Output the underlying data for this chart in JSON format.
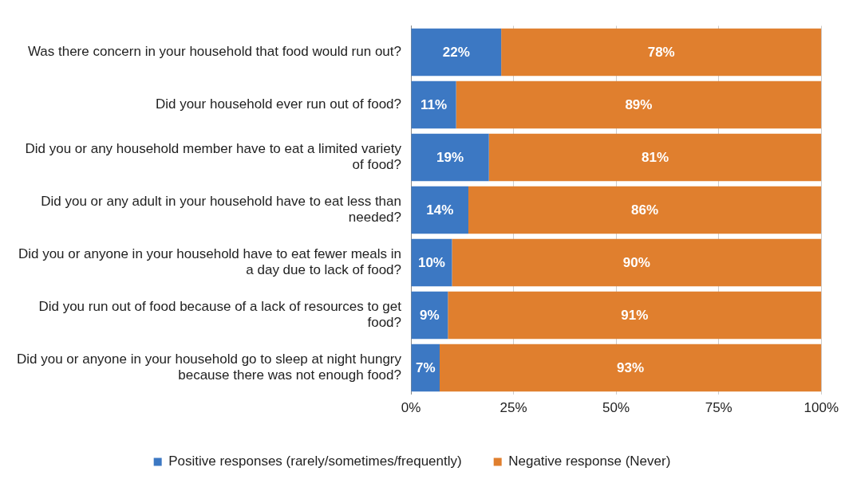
{
  "chart_data": {
    "type": "bar",
    "orientation": "horizontal",
    "stacked": true,
    "categories": [
      "Was there concern in your household that food would run out?",
      "Did your household ever run out of food?",
      "Did you or any household member have to eat a limited variety of food?",
      "Did you or any adult in your household have to eat less than needed?",
      "Did you or anyone in your household have to eat fewer meals in a day due to lack of food?",
      "Did you run out of food because of a lack of resources to get food?",
      "Did you or anyone in your household go to sleep at night hungry because there was not enough food?"
    ],
    "series": [
      {
        "name": "Positive responses (rarely/sometimes/frequently)",
        "color": "#3c78c3",
        "values": [
          22,
          11,
          19,
          14,
          10,
          9,
          7
        ],
        "value_labels": [
          "22%",
          "11%",
          "19%",
          "14%",
          "10%",
          "9%",
          "7%"
        ]
      },
      {
        "name": "Negative response (Never)",
        "color": "#e07f2e",
        "values": [
          78,
          89,
          81,
          86,
          90,
          91,
          93
        ],
        "value_labels": [
          "78%",
          "89%",
          "81%",
          "86%",
          "90%",
          "91%",
          "93%"
        ]
      }
    ],
    "xlim": [
      0,
      100
    ],
    "xticks": [
      {
        "value": 0,
        "label": "0%"
      },
      {
        "value": 25,
        "label": "25%"
      },
      {
        "value": 50,
        "label": "50%"
      },
      {
        "value": 75,
        "label": "75%"
      },
      {
        "value": 100,
        "label": "100%"
      }
    ],
    "grid": "x",
    "legend": "bottom"
  }
}
